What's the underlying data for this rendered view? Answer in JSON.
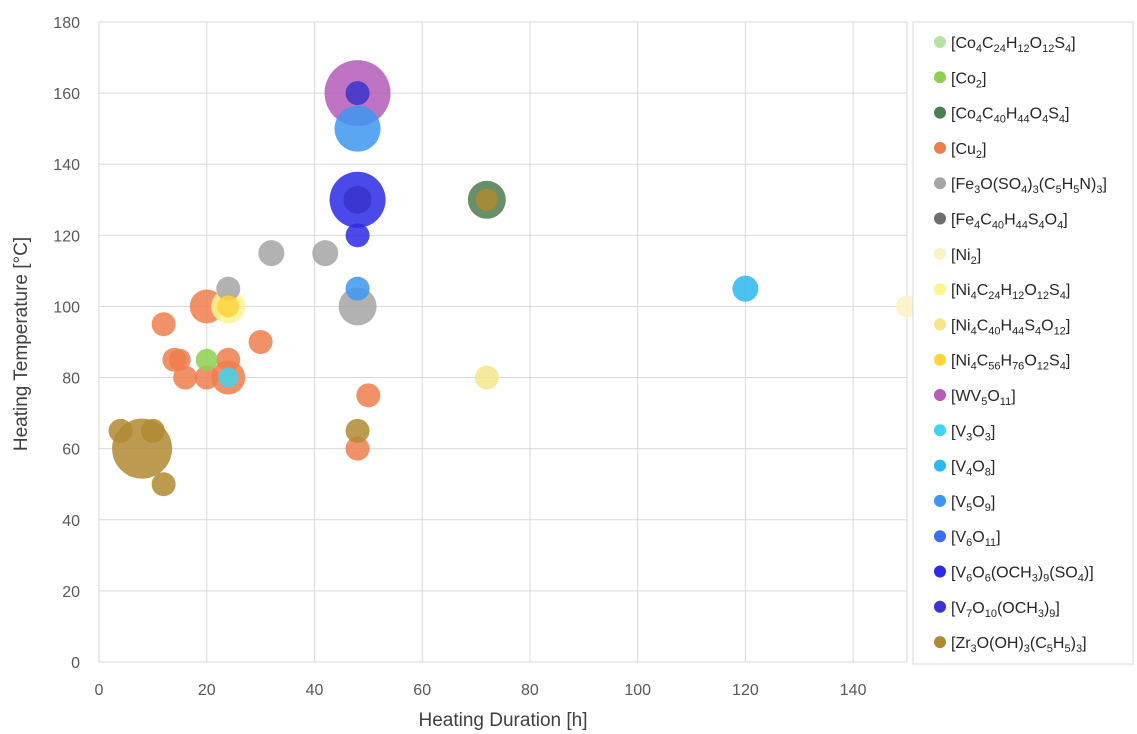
{
  "chart_data": {
    "type": "scatter",
    "title": "",
    "xlabel": "Heating Duration [h]",
    "ylabel": "Heating Temperature [°C]",
    "xlim": [
      0,
      150
    ],
    "ylim": [
      0,
      180
    ],
    "xticks": [
      0,
      20,
      40,
      60,
      80,
      100,
      120,
      140
    ],
    "yticks": [
      0,
      20,
      40,
      60,
      80,
      100,
      120,
      140,
      160,
      180
    ],
    "grid": true,
    "legend_position": "right",
    "series": [
      {
        "name": "[Co4C24H12O12S4]",
        "label_parts": [
          [
            "[Co",
            ""
          ],
          [
            "4",
            "sub"
          ],
          [
            "C",
            ""
          ],
          [
            "24",
            "sub"
          ],
          [
            "H",
            ""
          ],
          [
            "12",
            "sub"
          ],
          [
            "O",
            ""
          ],
          [
            "12",
            "sub"
          ],
          [
            "S",
            ""
          ],
          [
            "4",
            "sub"
          ],
          [
            "]",
            ""
          ]
        ],
        "color": "#b6e3a1",
        "points": []
      },
      {
        "name": "[Co2]",
        "label_parts": [
          [
            "[Co",
            ""
          ],
          [
            "2",
            "sub"
          ],
          [
            "]",
            ""
          ]
        ],
        "color": "#8fcf4f",
        "points": [
          {
            "x": 20,
            "y": 85,
            "r": 11
          }
        ]
      },
      {
        "name": "[Co4C40H44O4S4]",
        "label_parts": [
          [
            "[Co",
            ""
          ],
          [
            "4",
            "sub"
          ],
          [
            "C",
            ""
          ],
          [
            "40",
            "sub"
          ],
          [
            "H",
            ""
          ],
          [
            "44",
            "sub"
          ],
          [
            "O",
            ""
          ],
          [
            "4",
            "sub"
          ],
          [
            "S",
            ""
          ],
          [
            "4",
            "sub"
          ],
          [
            "]",
            ""
          ]
        ],
        "color": "#4e7d4e",
        "points": [
          {
            "x": 72,
            "y": 130,
            "r": 19
          }
        ]
      },
      {
        "name": "[Cu2]",
        "label_parts": [
          [
            "[Cu",
            ""
          ],
          [
            "2",
            "sub"
          ],
          [
            "]",
            ""
          ]
        ],
        "color": "#ee7e4e",
        "points": [
          {
            "x": 12,
            "y": 95,
            "r": 12
          },
          {
            "x": 14,
            "y": 85,
            "r": 12
          },
          {
            "x": 15,
            "y": 85,
            "r": 11
          },
          {
            "x": 16,
            "y": 80,
            "r": 12
          },
          {
            "x": 20,
            "y": 100,
            "r": 17
          },
          {
            "x": 20,
            "y": 80,
            "r": 12
          },
          {
            "x": 24,
            "y": 85,
            "r": 12
          },
          {
            "x": 24,
            "y": 80,
            "r": 17
          },
          {
            "x": 30,
            "y": 90,
            "r": 12
          },
          {
            "x": 48,
            "y": 60,
            "r": 12
          },
          {
            "x": 50,
            "y": 75,
            "r": 12
          }
        ]
      },
      {
        "name": "[Fe3O(SO4)3(C5H5N)3]",
        "label_parts": [
          [
            "[Fe",
            ""
          ],
          [
            "3",
            "sub"
          ],
          [
            "O(SO",
            ""
          ],
          [
            "4",
            "sub"
          ],
          [
            ")",
            ""
          ],
          [
            "3",
            "sub"
          ],
          [
            "(C",
            ""
          ],
          [
            "5",
            "sub"
          ],
          [
            "H",
            ""
          ],
          [
            "5",
            "sub"
          ],
          [
            "N)",
            ""
          ],
          [
            "3",
            "sub"
          ],
          [
            "]",
            ""
          ]
        ],
        "color": "#a5a5a5",
        "points": [
          {
            "x": 24,
            "y": 105,
            "r": 12
          },
          {
            "x": 32,
            "y": 115,
            "r": 13
          },
          {
            "x": 42,
            "y": 115,
            "r": 13
          },
          {
            "x": 48,
            "y": 100,
            "r": 19
          }
        ]
      },
      {
        "name": "[Fe4C40H44S4O4]",
        "label_parts": [
          [
            "[Fe",
            ""
          ],
          [
            "4",
            "sub"
          ],
          [
            "C",
            ""
          ],
          [
            "40",
            "sub"
          ],
          [
            "H",
            ""
          ],
          [
            "44",
            "sub"
          ],
          [
            "S",
            ""
          ],
          [
            "4",
            "sub"
          ],
          [
            "O",
            ""
          ],
          [
            "4",
            "sub"
          ],
          [
            "]",
            ""
          ]
        ],
        "color": "#6e6e6e",
        "points": []
      },
      {
        "name": "[Ni2]",
        "label_parts": [
          [
            "[Ni",
            ""
          ],
          [
            "2",
            "sub"
          ],
          [
            "]",
            ""
          ]
        ],
        "color": "#fdf2c4",
        "points": [
          {
            "x": 150,
            "y": 100,
            "r": 11
          }
        ]
      },
      {
        "name": "[Ni4C24H12O12S4]",
        "label_parts": [
          [
            "[Ni",
            ""
          ],
          [
            "4",
            "sub"
          ],
          [
            "C",
            ""
          ],
          [
            "24",
            "sub"
          ],
          [
            "H",
            ""
          ],
          [
            "12",
            "sub"
          ],
          [
            "O",
            ""
          ],
          [
            "12",
            "sub"
          ],
          [
            "S",
            ""
          ],
          [
            "4",
            "sub"
          ],
          [
            "]",
            ""
          ]
        ],
        "color": "#fff391",
        "points": [
          {
            "x": 24,
            "y": 100,
            "r": 17
          }
        ]
      },
      {
        "name": "[Ni4C40H44S4O12]",
        "label_parts": [
          [
            "[Ni",
            ""
          ],
          [
            "4",
            "sub"
          ],
          [
            "C",
            ""
          ],
          [
            "40",
            "sub"
          ],
          [
            "H",
            ""
          ],
          [
            "44",
            "sub"
          ],
          [
            "S",
            ""
          ],
          [
            "4",
            "sub"
          ],
          [
            "O",
            ""
          ],
          [
            "12",
            "sub"
          ],
          [
            "]",
            ""
          ]
        ],
        "color": "#f6e58a",
        "points": [
          {
            "x": 72,
            "y": 80,
            "r": 12
          }
        ]
      },
      {
        "name": "[Ni4C56H76O12S4]",
        "label_parts": [
          [
            "[Ni",
            ""
          ],
          [
            "4",
            "sub"
          ],
          [
            "C",
            ""
          ],
          [
            "56",
            "sub"
          ],
          [
            "H",
            ""
          ],
          [
            "76",
            "sub"
          ],
          [
            "O",
            ""
          ],
          [
            "12",
            "sub"
          ],
          [
            "S",
            ""
          ],
          [
            "4",
            "sub"
          ],
          [
            "]",
            ""
          ]
        ],
        "color": "#ffd43b",
        "points": [
          {
            "x": 24,
            "y": 100,
            "r": 11
          }
        ]
      },
      {
        "name": "[WV5O11]",
        "label_parts": [
          [
            "[WV",
            ""
          ],
          [
            "5",
            "sub"
          ],
          [
            "O",
            ""
          ],
          [
            "11",
            "sub"
          ],
          [
            "]",
            ""
          ]
        ],
        "color": "#b45cb8",
        "points": [
          {
            "x": 48,
            "y": 160,
            "r": 33
          }
        ]
      },
      {
        "name": "[V3O3]",
        "label_parts": [
          [
            "[V",
            ""
          ],
          [
            "3",
            "sub"
          ],
          [
            "O",
            ""
          ],
          [
            "3",
            "sub"
          ],
          [
            "]",
            ""
          ]
        ],
        "color": "#40d4f0",
        "points": [
          {
            "x": 24,
            "y": 80,
            "r": 10
          }
        ]
      },
      {
        "name": "[V4O8]",
        "label_parts": [
          [
            "[V",
            ""
          ],
          [
            "4",
            "sub"
          ],
          [
            "O",
            ""
          ],
          [
            "8",
            "sub"
          ],
          [
            "]",
            ""
          ]
        ],
        "color": "#2cb7ee",
        "points": [
          {
            "x": 120,
            "y": 105,
            "r": 13
          }
        ]
      },
      {
        "name": "[V5O9]",
        "label_parts": [
          [
            "[V",
            ""
          ],
          [
            "5",
            "sub"
          ],
          [
            "O",
            ""
          ],
          [
            "9",
            "sub"
          ],
          [
            "]",
            ""
          ]
        ],
        "color": "#3d97f0",
        "points": [
          {
            "x": 48,
            "y": 150,
            "r": 23
          },
          {
            "x": 48,
            "y": 105,
            "r": 12
          }
        ]
      },
      {
        "name": "[V6O11]",
        "label_parts": [
          [
            "[V",
            ""
          ],
          [
            "6",
            "sub"
          ],
          [
            "O",
            ""
          ],
          [
            "11",
            "sub"
          ],
          [
            "]",
            ""
          ]
        ],
        "color": "#3b6ff0",
        "points": []
      },
      {
        "name": "[V6O6(OCH3)9(SO4)]",
        "label_parts": [
          [
            "[V",
            ""
          ],
          [
            "6",
            "sub"
          ],
          [
            "O",
            ""
          ],
          [
            "6",
            "sub"
          ],
          [
            "(OCH",
            ""
          ],
          [
            "3",
            "sub"
          ],
          [
            ")",
            ""
          ],
          [
            "9",
            "sub"
          ],
          [
            "(SO",
            ""
          ],
          [
            "4",
            "sub"
          ],
          [
            ")]",
            ""
          ]
        ],
        "color": "#2a2ae8",
        "points": [
          {
            "x": 48,
            "y": 130,
            "r": 28
          },
          {
            "x": 48,
            "y": 120,
            "r": 12
          }
        ]
      },
      {
        "name": "[V7O10(OCH3)9]",
        "label_parts": [
          [
            "[V",
            ""
          ],
          [
            "7",
            "sub"
          ],
          [
            "O",
            ""
          ],
          [
            "10",
            "sub"
          ],
          [
            "(OCH",
            ""
          ],
          [
            "3",
            "sub"
          ],
          [
            ")",
            ""
          ],
          [
            "9",
            "sub"
          ],
          [
            "]",
            ""
          ]
        ],
        "color": "#3a33cc",
        "points": [
          {
            "x": 48,
            "y": 160,
            "r": 12
          },
          {
            "x": 48,
            "y": 130,
            "r": 14
          }
        ]
      },
      {
        "name": "[Zr3O(OH)3(C5H5)3]",
        "label_parts": [
          [
            "[Zr",
            ""
          ],
          [
            "3",
            "sub"
          ],
          [
            "O(OH)",
            ""
          ],
          [
            "3",
            "sub"
          ],
          [
            "(C",
            ""
          ],
          [
            "5",
            "sub"
          ],
          [
            "H",
            ""
          ],
          [
            "5",
            "sub"
          ],
          [
            ")",
            ""
          ],
          [
            "3",
            "sub"
          ],
          [
            "]",
            ""
          ]
        ],
        "color": "#b08a32",
        "points": [
          {
            "x": 4,
            "y": 65,
            "r": 12
          },
          {
            "x": 8,
            "y": 60,
            "r": 30
          },
          {
            "x": 10,
            "y": 65,
            "r": 12
          },
          {
            "x": 12,
            "y": 50,
            "r": 12
          },
          {
            "x": 48,
            "y": 65,
            "r": 12
          },
          {
            "x": 72,
            "y": 130,
            "r": 11
          }
        ]
      }
    ]
  }
}
